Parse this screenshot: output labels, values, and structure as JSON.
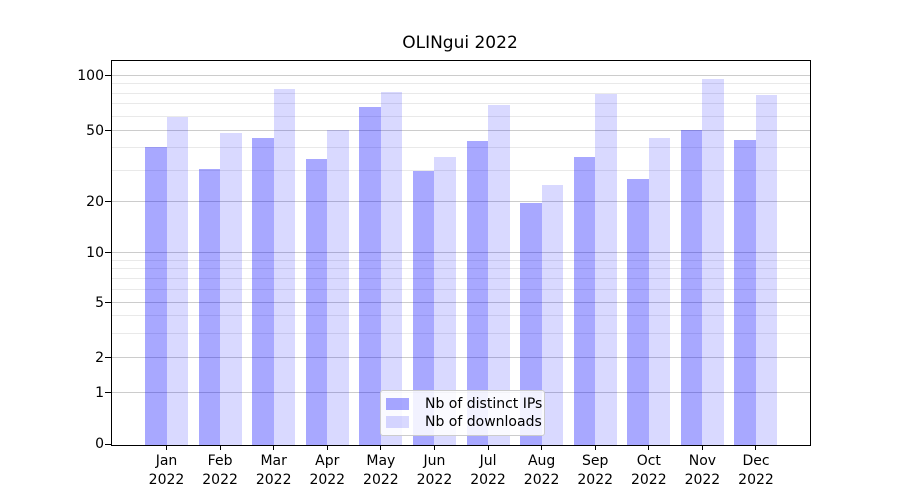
{
  "title": "OLINgui 2022",
  "legend": {
    "items": [
      {
        "label": "Nb of distinct IPs",
        "series_key": "ips"
      },
      {
        "label": "Nb of downloads",
        "series_key": "downloads"
      }
    ]
  },
  "colors": {
    "bar_ips": "rgba(0,0,255,0.34)",
    "bar_ips_hex": "#a9a9fa",
    "bar_downloads": "rgba(0,0,255,0.15)",
    "bar_downloads_hex": "#d9d9fb",
    "grid_major": "#cccccc",
    "grid_minor": "#e9e9e9",
    "axis": "#000000"
  },
  "chart_data": {
    "type": "bar",
    "title": "OLINgui 2022",
    "categories": [
      "Jan 2022",
      "Feb 2022",
      "Mar 2022",
      "Apr 2022",
      "May 2022",
      "Jun 2022",
      "Jul 2022",
      "Aug 2022",
      "Sep 2022",
      "Oct 2022",
      "Nov 2022",
      "Dec 2022"
    ],
    "series": [
      {
        "name": "Nb of distinct IPs",
        "values": [
          41,
          31,
          46,
          35,
          68,
          30,
          44,
          20,
          36,
          27,
          51,
          45
        ]
      },
      {
        "name": "Nb of downloads",
        "values": [
          60,
          49,
          85,
          51,
          82,
          36,
          70,
          25,
          80,
          46,
          97,
          79
        ]
      }
    ],
    "xlabel": "",
    "ylabel": "",
    "yscale": "log-like",
    "y_ticks": [
      0,
      1,
      2,
      5,
      10,
      20,
      50,
      100
    ],
    "y_minor_ticks": [
      3,
      4,
      6,
      7,
      8,
      9,
      30,
      40,
      60,
      70,
      80,
      90
    ],
    "ylim": [
      0,
      110
    ],
    "grid": true,
    "legend_position": "lower center"
  }
}
